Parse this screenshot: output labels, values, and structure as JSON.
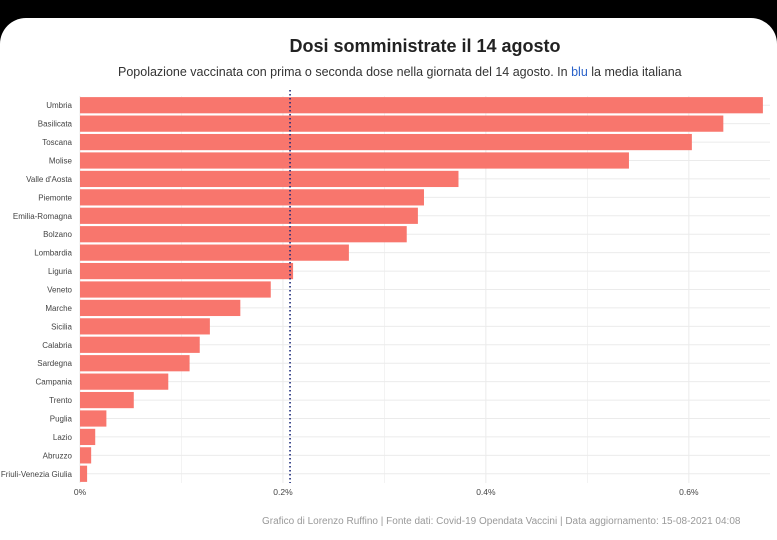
{
  "colors": {
    "bar": "#f8766d",
    "mean_line": "#1c2a7a",
    "grid": "#ebebeb",
    "blu": "#2a62c9"
  },
  "header": {
    "title": "Dosi somministrate il 14 agosto",
    "subtitle_a": "Popolazione vaccinata con prima o seconda dose nella giornata del 14 agosto. In",
    "subtitle_blu": "blu",
    "subtitle_b": "la media italiana"
  },
  "caption": "Grafico di Lorenzo Ruffino | Fonte dati: Covid-19 Opendata Vaccini | Data aggiornamento: 15-08-2021 04:08",
  "chart_data": {
    "type": "bar",
    "orientation": "horizontal",
    "title": "Dosi somministrate il 14 agosto",
    "categories": [
      "Umbria",
      "Basilicata",
      "Toscana",
      "Molise",
      "Valle d'Aosta",
      "Piemonte",
      "Emilia-Romagna",
      "Bolzano",
      "Lombardia",
      "Liguria",
      "Veneto",
      "Marche",
      "Sicilia",
      "Calabria",
      "Sardegna",
      "Campania",
      "Trento",
      "Puglia",
      "Lazio",
      "Abruzzo",
      "Friuli-Venezia Giulia"
    ],
    "values": [
      0.673,
      0.634,
      0.603,
      0.541,
      0.373,
      0.339,
      0.333,
      0.322,
      0.265,
      0.21,
      0.188,
      0.158,
      0.128,
      0.118,
      0.108,
      0.087,
      0.053,
      0.026,
      0.015,
      0.011,
      0.007
    ],
    "mean": 0.207,
    "xlim": [
      0,
      0.68
    ],
    "x_ticks": [
      0,
      0.2,
      0.4,
      0.6
    ],
    "x_tick_labels": [
      "0%",
      "0.2%",
      "0.4%",
      "0.6%"
    ],
    "unit": "%"
  }
}
